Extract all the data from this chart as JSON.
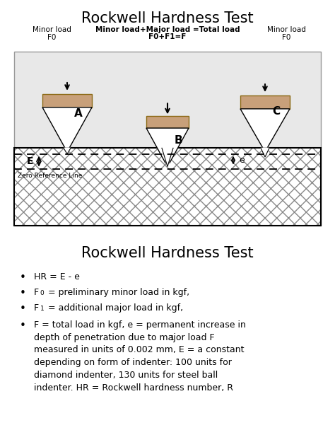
{
  "title": "Rockwell Hardness Test",
  "title2": "Rockwell Hardness Test",
  "indenter_color": "#c8a07a",
  "indenter_edge": "#8b6914",
  "material_fill": "#ffffff",
  "hatch_color": "#aaaaaa",
  "minor_load_left": "Minor load\nF0",
  "minor_load_right": "Minor load\nF0",
  "center_text_line1": "Minor load+Major load =Total load",
  "center_text_line2": "F0+F1=F",
  "zero_ref_text": "Zero Reference Line",
  "label_A": "A",
  "label_B": "B",
  "label_C": "C",
  "label_E": "E",
  "label_e": "e",
  "diagram_bg": "#e8e8e8",
  "diagram_border": "#999999"
}
